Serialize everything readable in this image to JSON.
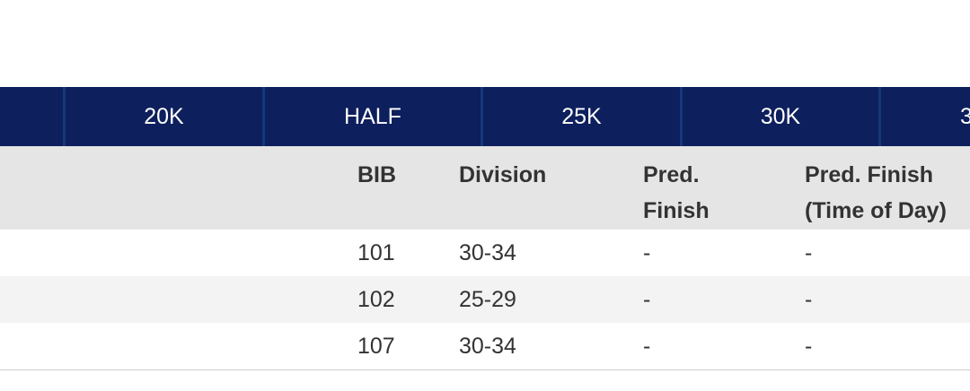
{
  "tabs": [
    "20K",
    "HALF",
    "25K",
    "30K",
    "3"
  ],
  "table": {
    "headers": [
      "BIB",
      "Division",
      "Pred. Finish",
      "Pred. Finish (Time of Day)"
    ],
    "rows": [
      [
        101,
        "30-34",
        "-",
        "-"
      ],
      [
        102,
        "25-29",
        "-",
        "-"
      ],
      [
        107,
        "30-34",
        "-",
        "-"
      ]
    ]
  }
}
